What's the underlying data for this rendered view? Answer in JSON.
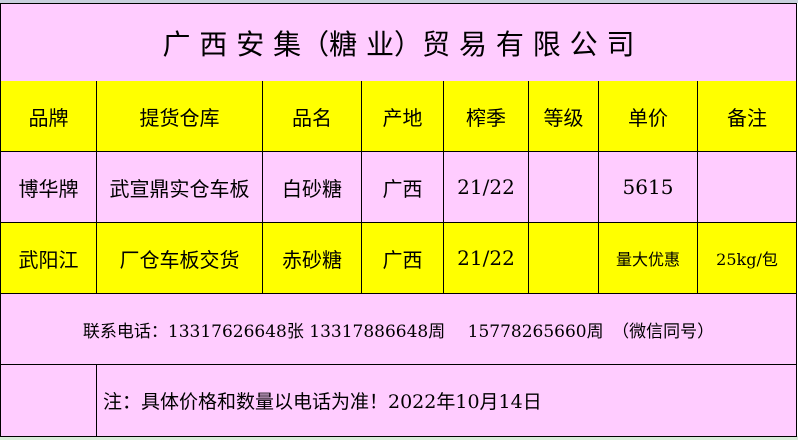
{
  "title": "广 西 安 集（糖 业）贸 易 有 限 公 司",
  "columns": [
    "品牌",
    "提货仓库",
    "品名",
    "产地",
    "榨季",
    "等级",
    "单价",
    "备注"
  ],
  "rows": [
    [
      "博华牌",
      "武宣鼎实仓车板",
      "白砂糖",
      "广西",
      "21/22",
      "",
      "5615",
      ""
    ],
    [
      "武阳江",
      "厂仓车板交货",
      "赤砂糖",
      "广西",
      "21/22",
      "",
      "量大优惠",
      "25kg/包"
    ]
  ],
  "contact": "联系电话：13317626648张 13317886648周　 15778265660周　（微信同号）",
  "note": "注：具体价格和数量以电话为准！2022年10月14日",
  "colors": {
    "pink": "#ffccff",
    "yellow": "#ffff00"
  }
}
